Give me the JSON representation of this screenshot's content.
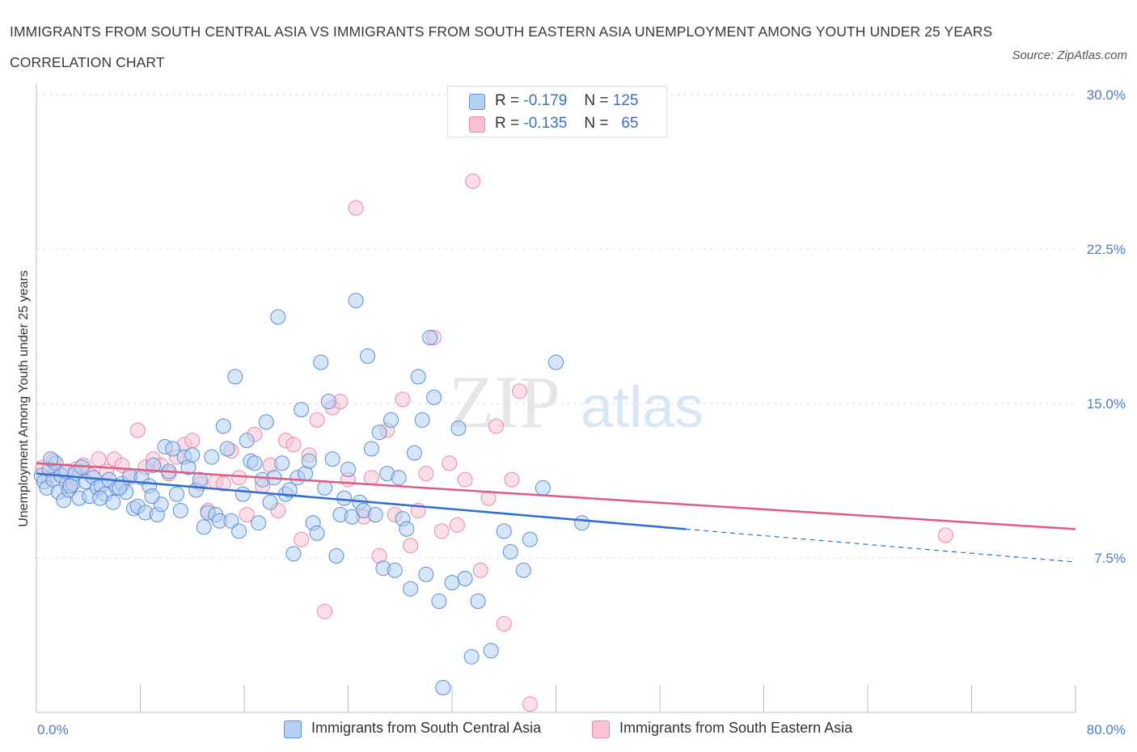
{
  "title": "IMMIGRANTS FROM SOUTH CENTRAL ASIA VS IMMIGRANTS FROM SOUTH EASTERN ASIA UNEMPLOYMENT AMONG YOUTH UNDER 25 YEARS CORRELATION CHART",
  "source": "Source: ZipAtlas.com",
  "watermark": {
    "zip": "ZIP",
    "atlas": "atlas"
  },
  "legend": {
    "series1": {
      "r_label": "R =",
      "r_value": "-0.179",
      "n_label": "N =",
      "n_value": "125"
    },
    "series2": {
      "r_label": "R =",
      "r_value": "-0.135",
      "n_label": "N =",
      "n_value": "65"
    }
  },
  "colors": {
    "blue_fill": "#b7cff2",
    "blue_stroke": "#5a8fd8",
    "blue_line": "#2f6fd1",
    "pink_fill": "#f7c4d4",
    "pink_stroke": "#e88aa8",
    "pink_line": "#e05a86",
    "grid": "#dcdcdc",
    "tick_text": "#4a7cc9"
  },
  "chart_data": {
    "type": "scatter",
    "xlabel": "",
    "ylabel": "Unemployment Among Youth under 25 years",
    "xlim": [
      0,
      80
    ],
    "ylim": [
      0,
      30
    ],
    "x_tick_labels": [
      "0.0%",
      "80.0%"
    ],
    "y_ticks": [
      7.5,
      15.0,
      22.5,
      30.0
    ],
    "y_tick_labels": [
      "7.5%",
      "15.0%",
      "22.5%",
      "30.0%"
    ],
    "grid": true,
    "legend_position": "top-center",
    "series": [
      {
        "name": "Immigrants from South Central Asia",
        "color": "#5a8fd8",
        "trend": {
          "x": [
            0,
            50
          ],
          "y": [
            11.6,
            8.9
          ],
          "dashed_to": [
            80,
            7.3
          ]
        },
        "points": [
          [
            0.4,
            11.5
          ],
          [
            0.6,
            11.2
          ],
          [
            0.8,
            10.9
          ],
          [
            1.0,
            11.8
          ],
          [
            1.3,
            11.3
          ],
          [
            1.5,
            12.1
          ],
          [
            1.7,
            10.7
          ],
          [
            1.9,
            11.5
          ],
          [
            2.1,
            10.3
          ],
          [
            2.3,
            11.7
          ],
          [
            2.5,
            10.8
          ],
          [
            2.8,
            11.1
          ],
          [
            3.0,
            11.6
          ],
          [
            3.3,
            10.4
          ],
          [
            3.5,
            11.9
          ],
          [
            3.8,
            11.2
          ],
          [
            4.1,
            10.5
          ],
          [
            4.4,
            11.4
          ],
          [
            4.7,
            10.9
          ],
          [
            5.0,
            11.0
          ],
          [
            5.3,
            10.6
          ],
          [
            5.6,
            11.3
          ],
          [
            5.9,
            10.2
          ],
          [
            6.2,
            10.9
          ],
          [
            6.6,
            11.1
          ],
          [
            6.9,
            10.7
          ],
          [
            7.2,
            11.5
          ],
          [
            7.5,
            9.9
          ],
          [
            7.8,
            10.0
          ],
          [
            8.1,
            11.4
          ],
          [
            8.4,
            9.7
          ],
          [
            8.7,
            11.0
          ],
          [
            9.0,
            12.0
          ],
          [
            9.3,
            9.6
          ],
          [
            9.6,
            10.1
          ],
          [
            9.9,
            12.9
          ],
          [
            10.2,
            11.7
          ],
          [
            10.5,
            12.8
          ],
          [
            10.8,
            10.6
          ],
          [
            11.1,
            9.8
          ],
          [
            11.4,
            12.4
          ],
          [
            11.7,
            11.9
          ],
          [
            12.0,
            12.5
          ],
          [
            12.3,
            10.8
          ],
          [
            12.6,
            11.3
          ],
          [
            12.9,
            9.0
          ],
          [
            13.2,
            9.7
          ],
          [
            13.5,
            12.4
          ],
          [
            13.8,
            9.6
          ],
          [
            14.1,
            9.3
          ],
          [
            14.4,
            13.9
          ],
          [
            14.7,
            12.8
          ],
          [
            15.0,
            9.3
          ],
          [
            15.3,
            16.3
          ],
          [
            15.6,
            8.8
          ],
          [
            15.9,
            10.6
          ],
          [
            16.2,
            13.2
          ],
          [
            16.5,
            12.2
          ],
          [
            16.8,
            12.1
          ],
          [
            17.1,
            9.2
          ],
          [
            17.4,
            11.3
          ],
          [
            17.7,
            14.1
          ],
          [
            18.0,
            10.2
          ],
          [
            18.3,
            11.4
          ],
          [
            18.6,
            19.2
          ],
          [
            18.9,
            12.1
          ],
          [
            19.2,
            10.6
          ],
          [
            19.5,
            10.8
          ],
          [
            19.8,
            7.7
          ],
          [
            20.1,
            11.4
          ],
          [
            20.4,
            14.7
          ],
          [
            20.7,
            11.6
          ],
          [
            21.0,
            12.2
          ],
          [
            21.3,
            9.2
          ],
          [
            21.6,
            8.7
          ],
          [
            21.9,
            17.0
          ],
          [
            22.2,
            10.9
          ],
          [
            22.5,
            15.1
          ],
          [
            22.8,
            12.3
          ],
          [
            23.1,
            7.6
          ],
          [
            23.4,
            9.6
          ],
          [
            23.7,
            10.4
          ],
          [
            24.0,
            11.8
          ],
          [
            24.3,
            9.5
          ],
          [
            24.6,
            20.0
          ],
          [
            24.9,
            10.2
          ],
          [
            25.2,
            9.8
          ],
          [
            25.5,
            17.3
          ],
          [
            25.8,
            12.8
          ],
          [
            26.1,
            9.6
          ],
          [
            26.4,
            13.6
          ],
          [
            26.7,
            7.0
          ],
          [
            27.0,
            11.6
          ],
          [
            27.3,
            14.2
          ],
          [
            27.6,
            6.9
          ],
          [
            27.9,
            11.4
          ],
          [
            28.2,
            9.4
          ],
          [
            28.5,
            8.9
          ],
          [
            28.8,
            6.0
          ],
          [
            29.1,
            12.6
          ],
          [
            29.4,
            16.3
          ],
          [
            29.7,
            14.2
          ],
          [
            30.0,
            6.7
          ],
          [
            30.3,
            18.2
          ],
          [
            30.6,
            15.3
          ],
          [
            31.0,
            5.4
          ],
          [
            31.3,
            1.2
          ],
          [
            32.0,
            6.3
          ],
          [
            32.5,
            13.8
          ],
          [
            33.0,
            6.5
          ],
          [
            33.5,
            2.7
          ],
          [
            34.0,
            5.4
          ],
          [
            35.0,
            3.0
          ],
          [
            36.0,
            8.8
          ],
          [
            36.5,
            7.8
          ],
          [
            37.5,
            6.9
          ],
          [
            38.0,
            8.4
          ],
          [
            39.0,
            10.9
          ],
          [
            40.0,
            17.0
          ],
          [
            42.0,
            9.2
          ],
          [
            1.1,
            12.3
          ],
          [
            2.6,
            11.0
          ],
          [
            4.9,
            10.4
          ],
          [
            6.4,
            10.9
          ],
          [
            8.9,
            10.5
          ]
        ]
      },
      {
        "name": "Immigrants from South Eastern Asia",
        "color": "#e88aa8",
        "trend": {
          "x": [
            0,
            80
          ],
          "y": [
            12.1,
            8.9
          ]
        },
        "points": [
          [
            0.5,
            11.9
          ],
          [
            0.9,
            11.4
          ],
          [
            1.3,
            12.2
          ],
          [
            1.8,
            11.6
          ],
          [
            2.3,
            11.1
          ],
          [
            3.0,
            11.8
          ],
          [
            3.6,
            12.0
          ],
          [
            4.2,
            11.5
          ],
          [
            4.8,
            12.3
          ],
          [
            5.4,
            11.7
          ],
          [
            6.0,
            12.3
          ],
          [
            6.6,
            12.0
          ],
          [
            7.2,
            11.4
          ],
          [
            7.8,
            13.7
          ],
          [
            8.4,
            11.9
          ],
          [
            9.0,
            12.3
          ],
          [
            9.6,
            12.0
          ],
          [
            10.2,
            11.6
          ],
          [
            10.8,
            12.4
          ],
          [
            11.4,
            13.0
          ],
          [
            12.0,
            13.2
          ],
          [
            12.6,
            11.1
          ],
          [
            13.2,
            9.8
          ],
          [
            13.8,
            11.2
          ],
          [
            14.4,
            11.1
          ],
          [
            15.0,
            12.7
          ],
          [
            15.6,
            11.4
          ],
          [
            16.2,
            9.6
          ],
          [
            16.8,
            13.5
          ],
          [
            17.4,
            11.0
          ],
          [
            18.0,
            12.0
          ],
          [
            18.6,
            9.8
          ],
          [
            19.2,
            13.2
          ],
          [
            19.8,
            13.0
          ],
          [
            20.4,
            8.4
          ],
          [
            21.0,
            12.5
          ],
          [
            21.6,
            14.2
          ],
          [
            22.2,
            4.9
          ],
          [
            22.8,
            14.8
          ],
          [
            23.4,
            15.1
          ],
          [
            24.0,
            11.3
          ],
          [
            24.6,
            24.5
          ],
          [
            25.2,
            9.5
          ],
          [
            25.8,
            11.4
          ],
          [
            26.4,
            7.6
          ],
          [
            27.0,
            13.7
          ],
          [
            27.6,
            9.6
          ],
          [
            28.2,
            15.2
          ],
          [
            28.8,
            8.1
          ],
          [
            29.4,
            9.8
          ],
          [
            30.0,
            11.6
          ],
          [
            30.6,
            18.2
          ],
          [
            31.2,
            8.8
          ],
          [
            31.8,
            12.1
          ],
          [
            32.4,
            9.1
          ],
          [
            33.0,
            11.3
          ],
          [
            33.6,
            25.8
          ],
          [
            34.2,
            6.9
          ],
          [
            34.8,
            10.4
          ],
          [
            35.4,
            13.9
          ],
          [
            36.0,
            4.3
          ],
          [
            36.6,
            11.3
          ],
          [
            37.2,
            15.6
          ],
          [
            38.0,
            0.4
          ],
          [
            70.0,
            8.6
          ]
        ]
      }
    ]
  },
  "bottom_legend": {
    "series1_label": "Immigrants from South Central Asia",
    "series2_label": "Immigrants from South Eastern Asia"
  }
}
